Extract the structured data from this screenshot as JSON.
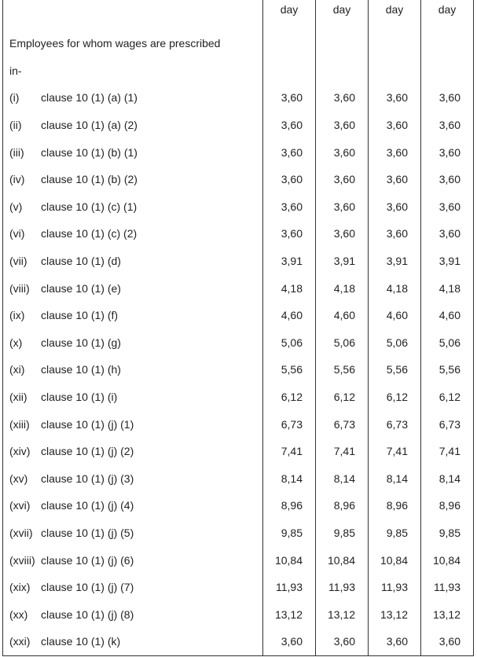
{
  "header": {
    "columns": [
      "day",
      "day",
      "day",
      "day"
    ],
    "intro_line1": "Employees for whom wages are prescribed",
    "intro_line2": "in-"
  },
  "rows": [
    {
      "num": "(i)",
      "clause": "clause 10 (1) (a) (1)",
      "values": [
        "3,60",
        "3,60",
        "3,60",
        "3,60"
      ]
    },
    {
      "num": "(ii)",
      "clause": "clause 10 (1) (a) (2)",
      "values": [
        "3,60",
        "3,60",
        "3,60",
        "3,60"
      ]
    },
    {
      "num": "(iii)",
      "clause": "clause 10 (1) (b) (1)",
      "values": [
        "3,60",
        "3,60",
        "3,60",
        "3,60"
      ]
    },
    {
      "num": "(iv)",
      "clause": "clause 10 (1) (b) (2)",
      "values": [
        "3,60",
        "3,60",
        "3,60",
        "3,60"
      ]
    },
    {
      "num": "(v)",
      "clause": "clause 10 (1) (c) (1)",
      "values": [
        "3,60",
        "3,60",
        "3,60",
        "3,60"
      ]
    },
    {
      "num": "(vi)",
      "clause": "clause 10 (1) (c) (2)",
      "values": [
        "3,60",
        "3,60",
        "3,60",
        "3,60"
      ]
    },
    {
      "num": "(vii)",
      "clause": "clause 10 (1) (d)",
      "values": [
        "3,91",
        "3,91",
        "3,91",
        "3,91"
      ]
    },
    {
      "num": "(viii)",
      "clause": "clause 10 (1) (e)",
      "values": [
        "4,18",
        "4,18",
        "4,18",
        "4,18"
      ]
    },
    {
      "num": "(ix)",
      "clause": "clause 10 (1) (f)",
      "values": [
        "4,60",
        "4,60",
        "4,60",
        "4,60"
      ]
    },
    {
      "num": "(x)",
      "clause": "clause 10 (1) (g)",
      "values": [
        "5,06",
        "5,06",
        "5,06",
        "5,06"
      ]
    },
    {
      "num": "(xi)",
      "clause": "clause 10 (1) (h)",
      "values": [
        "5,56",
        "5,56",
        "5,56",
        "5,56"
      ]
    },
    {
      "num": "(xii)",
      "clause": "clause 10 (1) (i)",
      "values": [
        "6,12",
        "6,12",
        "6,12",
        "6,12"
      ]
    },
    {
      "num": "(xiii)",
      "clause": "clause 10 (1) (j) (1)",
      "values": [
        "6,73",
        "6,73",
        "6,73",
        "6,73"
      ]
    },
    {
      "num": "(xiv)",
      "clause": "clause 10 (1) (j) (2)",
      "values": [
        "7,41",
        "7,41",
        "7,41",
        "7,41"
      ]
    },
    {
      "num": "(xv)",
      "clause": "clause 10 (1) (j) (3)",
      "values": [
        "8,14",
        "8,14",
        "8,14",
        "8,14"
      ]
    },
    {
      "num": "(xvi)",
      "clause": "clause 10 (1) (j) (4)",
      "values": [
        "8,96",
        "8,96",
        "8,96",
        "8,96"
      ]
    },
    {
      "num": "(xvii)",
      "clause": "clause 10 (1) (j) (5)",
      "values": [
        "9,85",
        "9,85",
        "9,85",
        "9,85"
      ]
    },
    {
      "num": "(xviii)",
      "clause": "clause 10 (1) (j) (6)",
      "values": [
        "10,84",
        "10,84",
        "10,84",
        "10,84"
      ]
    },
    {
      "num": "(xix)",
      "clause": "clause 10 (1) (j) (7)",
      "values": [
        "11,93",
        "11,93",
        "11,93",
        "11,93"
      ]
    },
    {
      "num": "(xx)",
      "clause": "clause 10 (1) (j) (8)",
      "values": [
        "13,12",
        "13,12",
        "13,12",
        "13,12"
      ]
    },
    {
      "num": "(xxi)",
      "clause": "clause 10 (1) (k)",
      "values": [
        "3,60",
        "3,60",
        "3,60",
        "3,60"
      ]
    }
  ]
}
